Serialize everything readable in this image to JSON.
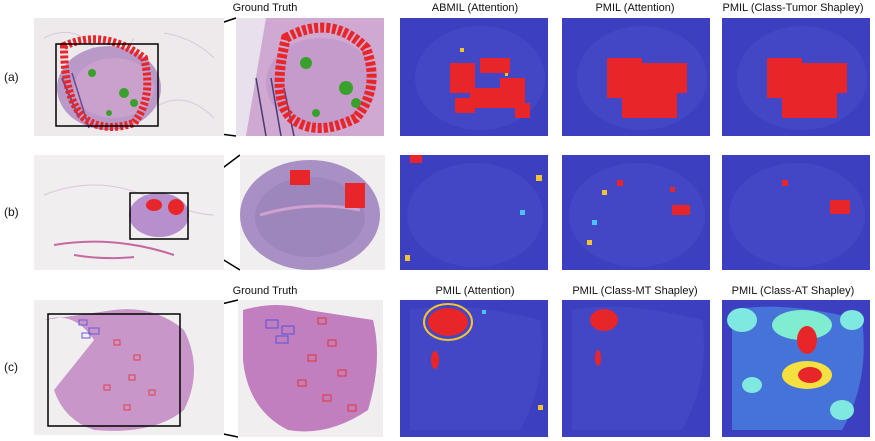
{
  "row_labels": [
    "(a)",
    "(b)",
    "(c)"
  ],
  "headers_top": {
    "ground_truth": "Ground Truth",
    "abmil_attention": "ABMIL (Attention)",
    "pmil_attention": "PMIL (Attention)",
    "pmil_class_tumor_shapley": "PMIL (Class-Tumor Shapley)"
  },
  "headers_bottom": {
    "ground_truth": "Ground Truth",
    "pmil_attention": "PMIL (Attention)",
    "pmil_class_mt_shapley": "PMIL (Class-MT Shapley)",
    "pmil_class_at_shapley": "PMIL (Class-AT Shapley)"
  },
  "colors": {
    "tumor_annotation": "#e8262a",
    "normal_annotation": "#3aa02c",
    "heatmap_background": "#3c3fc0",
    "tissue_pink": "#c98cc0",
    "tissue_purple": "#8a6cb0",
    "mt_box": "#6a5ad6",
    "at_box": "#e0404a"
  }
}
